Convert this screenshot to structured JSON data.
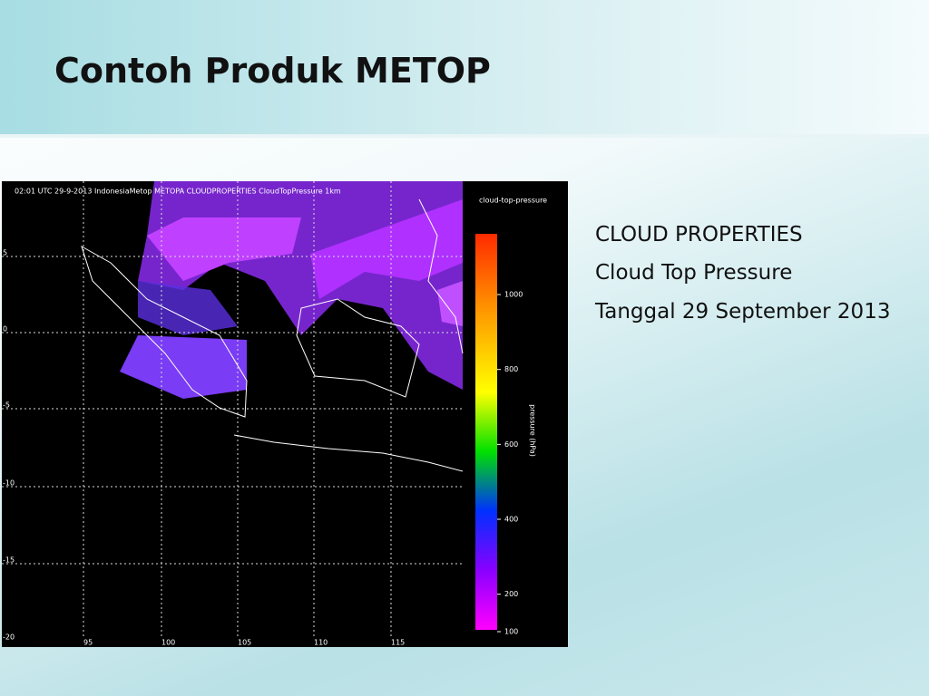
{
  "title": "Contoh Produk METOP",
  "body": [
    "CLOUD PROPERTIES",
    "Cloud Top Pressure",
    "Tanggal 29 September 2013"
  ],
  "image": {
    "caption": "02:01 UTC 29-9-2013 IndonesiaMetop METOPA CLOUDPROPERTIES CloudTopPressure 1km",
    "colorbar_title": "cloud-top-pressure",
    "colorbar_axis_label": "pressure (hPa)",
    "colorbar_ticks": [
      1000,
      800,
      600,
      400,
      200,
      100
    ],
    "lat_labels": [
      "5",
      "0",
      "-5",
      "-10",
      "-15",
      "-20"
    ],
    "lon_labels": [
      "95",
      "100",
      "105",
      "110",
      "115"
    ]
  }
}
